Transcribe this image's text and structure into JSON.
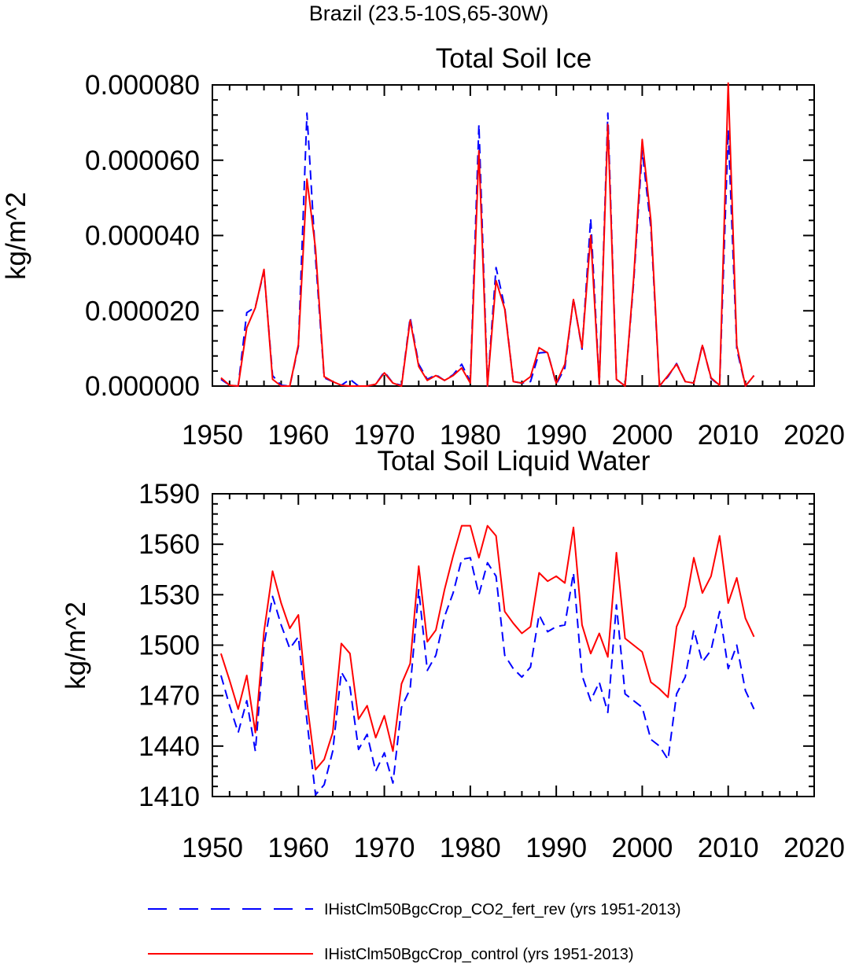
{
  "figure": {
    "suptitle": "Brazil (23.5-10S,65-30W)",
    "legend": [
      {
        "label": "IHistClm50BgcCrop_CO2_fert_rev (yrs 1951-2013)",
        "color": "#0000ff",
        "dash": "dashed"
      },
      {
        "label": "IHistClm50BgcCrop_control (yrs 1951-2013)",
        "color": "#ff0000",
        "dash": "solid"
      }
    ]
  },
  "chart_data": [
    {
      "type": "line",
      "title": "Total Soil Ice",
      "xlabel": "",
      "ylabel": "kg/m^2",
      "xlim": [
        1950,
        2020
      ],
      "ylim": [
        0,
        8e-05
      ],
      "xticks": [
        1950,
        1960,
        1970,
        1980,
        1990,
        2000,
        2010,
        2020
      ],
      "xtick_labels": [
        "1950",
        "1960",
        "1970",
        "1980",
        "1990",
        "2000",
        "2010",
        "2020"
      ],
      "yticks": [
        0,
        2e-05,
        4e-05,
        6e-05,
        8e-05
      ],
      "ytick_labels": [
        "0.000000",
        "0.000020",
        "0.000040",
        "0.000060",
        "0.000080"
      ],
      "x": [
        1951,
        1952,
        1953,
        1954,
        1955,
        1956,
        1957,
        1958,
        1959,
        1960,
        1961,
        1962,
        1963,
        1964,
        1965,
        1966,
        1967,
        1968,
        1969,
        1970,
        1971,
        1972,
        1973,
        1974,
        1975,
        1976,
        1977,
        1978,
        1979,
        1980,
        1981,
        1982,
        1983,
        1984,
        1985,
        1986,
        1987,
        1988,
        1989,
        1990,
        1991,
        1992,
        1993,
        1994,
        1995,
        1996,
        1997,
        1998,
        1999,
        2000,
        2001,
        2002,
        2003,
        2004,
        2005,
        2006,
        2007,
        2008,
        2009,
        2010,
        2011,
        2012,
        2013
      ],
      "series": [
        {
          "name": "IHistClm50BgcCrop_CO2_fert_rev (yrs 1951-2013)",
          "color": "#0000ff",
          "dash": "dashed",
          "values": [
            1.8e-06,
            2e-07,
            0.0,
            1.95e-05,
            2.1e-05,
            3.05e-05,
            2.8e-06,
            2e-07,
            0.0,
            1.05e-05,
            7.25e-05,
            3.4e-05,
            2.2e-06,
            1.2e-06,
            2e-07,
            1.8e-06,
            0.0,
            0.0,
            5e-07,
            3.8e-06,
            8e-07,
            2e-07,
            1.82e-05,
            5.8e-06,
            1.8e-06,
            3e-06,
            1.5e-06,
            3e-06,
            5.8e-06,
            1.2e-06,
            6.95e-05,
            0.0,
            3.15e-05,
            2.1e-05,
            1.2e-06,
            8e-07,
            1.2e-06,
            8.8e-06,
            9e-06,
            5e-07,
            4.8e-06,
            2.32e-05,
            9.8e-06,
            4.45e-05,
            5e-07,
            7.25e-05,
            1.8e-06,
            0.0,
            2.75e-05,
            6.25e-05,
            4.2e-05,
            0.0,
            2.5e-06,
            6e-06,
            1.2e-06,
            8e-07,
            1.1e-05,
            2e-06,
            2e-07,
            6.8e-05,
            9.8e-06,
            0.0,
            2.8e-06
          ]
        },
        {
          "name": "IHistClm50BgcCrop_control (yrs 1951-2013)",
          "color": "#ff0000",
          "dash": "solid",
          "values": [
            2.2e-06,
            2e-07,
            0.0,
            1.55e-05,
            2.08e-05,
            3.1e-05,
            1.8e-06,
            0.0,
            0.0,
            1.1e-05,
            5.5e-05,
            3.65e-05,
            2.5e-06,
            1.2e-06,
            2e-07,
            0.0,
            0.0,
            0.0,
            5e-07,
            3.5e-06,
            8e-07,
            0.0,
            1.75e-05,
            5.2e-06,
            1.5e-06,
            2.8e-06,
            1.5e-06,
            2.8e-06,
            4.8e-06,
            8e-07,
            6.25e-05,
            0.0,
            2.8e-05,
            2.05e-05,
            1.2e-06,
            8e-07,
            2.5e-06,
            1.02e-05,
            8.8e-06,
            8e-07,
            5.8e-06,
            2.3e-05,
            1.02e-05,
            4e-05,
            5e-07,
            6.95e-05,
            1.8e-06,
            0.0,
            2.85e-05,
            6.55e-05,
            4.4e-05,
            0.0,
            2.8e-06,
            5.8e-06,
            1.2e-06,
            8e-07,
            1.08e-05,
            2.2e-06,
            2e-07,
            8.05e-05,
            1.08e-05,
            0.0,
            2.8e-06
          ]
        }
      ]
    },
    {
      "type": "line",
      "title": "Total Soil Liquid Water",
      "xlabel": "",
      "ylabel": "kg/m^2",
      "xlim": [
        1950,
        2020
      ],
      "ylim": [
        1410,
        1590
      ],
      "xticks": [
        1950,
        1960,
        1970,
        1980,
        1990,
        2000,
        2010,
        2020
      ],
      "xtick_labels": [
        "1950",
        "1960",
        "1970",
        "1980",
        "1990",
        "2000",
        "2010",
        "2020"
      ],
      "yticks": [
        1410,
        1440,
        1470,
        1500,
        1530,
        1560,
        1590
      ],
      "ytick_labels": [
        "1410",
        "1440",
        "1470",
        "1500",
        "1530",
        "1560",
        "1590"
      ],
      "x": [
        1951,
        1952,
        1953,
        1954,
        1955,
        1956,
        1957,
        1958,
        1959,
        1960,
        1961,
        1962,
        1963,
        1964,
        1965,
        1966,
        1967,
        1968,
        1969,
        1970,
        1971,
        1972,
        1973,
        1974,
        1975,
        1976,
        1977,
        1978,
        1979,
        1980,
        1981,
        1982,
        1983,
        1984,
        1985,
        1986,
        1987,
        1988,
        1989,
        1990,
        1991,
        1992,
        1993,
        1994,
        1995,
        1996,
        1997,
        1998,
        1999,
        2000,
        2001,
        2002,
        2003,
        2004,
        2005,
        2006,
        2007,
        2008,
        2009,
        2010,
        2011,
        2012,
        2013
      ],
      "series": [
        {
          "name": "IHistClm50BgcCrop_CO2_fert_rev (yrs 1951-2013)",
          "color": "#0000ff",
          "dash": "dashed",
          "values": [
            1482,
            1464,
            1448,
            1467,
            1437,
            1500,
            1529,
            1512,
            1498,
            1505,
            1455,
            1411,
            1417,
            1437,
            1484,
            1475,
            1438,
            1447,
            1425,
            1436,
            1418,
            1463,
            1474,
            1533,
            1485,
            1494,
            1517,
            1531,
            1551,
            1552,
            1530,
            1549,
            1541,
            1494,
            1486,
            1481,
            1487,
            1518,
            1508,
            1511,
            1512,
            1543,
            1482,
            1467,
            1478,
            1460,
            1524,
            1471,
            1467,
            1463,
            1444,
            1440,
            1432,
            1471,
            1481,
            1509,
            1490,
            1497,
            1520,
            1486,
            1500,
            1473,
            1462
          ]
        },
        {
          "name": "IHistClm50BgcCrop_control (yrs 1951-2013)",
          "color": "#ff0000",
          "dash": "solid",
          "values": [
            1495,
            1479,
            1462,
            1482,
            1448,
            1508,
            1544,
            1525,
            1510,
            1518,
            1466,
            1426,
            1432,
            1448,
            1501,
            1495,
            1456,
            1464,
            1445,
            1458,
            1437,
            1477,
            1489,
            1547,
            1502,
            1509,
            1533,
            1553,
            1571,
            1571,
            1552,
            1571,
            1565,
            1520,
            1513,
            1507,
            1511,
            1543,
            1538,
            1541,
            1537,
            1570,
            1512,
            1495,
            1507,
            1493,
            1555,
            1504,
            1500,
            1496,
            1478,
            1474,
            1469,
            1511,
            1523,
            1552,
            1531,
            1541,
            1565,
            1525,
            1540,
            1516,
            1505
          ]
        }
      ]
    }
  ]
}
